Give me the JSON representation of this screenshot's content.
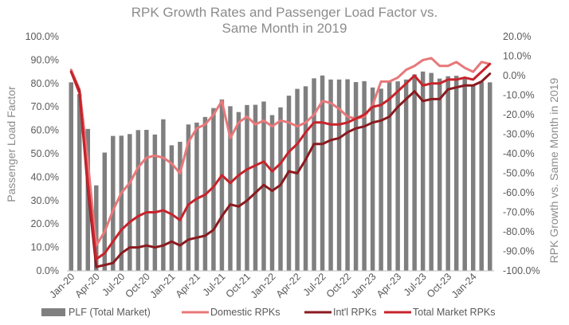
{
  "chart_data": {
    "type": "bar",
    "title": "RPK Growth Rates and Passenger Load Factor vs. Same Month in 2019",
    "title_lines": [
      "RPK Growth Rates and Passenger Load Factor vs.",
      "Same Month in 2019"
    ],
    "ylabel": "Passenger Load Factor",
    "y2label": "RPK Growth vs. Same Month in 2019",
    "ylim": [
      0,
      100
    ],
    "y2lim": [
      -100,
      20
    ],
    "y_ticks": [
      "0.0%",
      "10.0%",
      "20.0%",
      "30.0%",
      "40.0%",
      "50.0%",
      "60.0%",
      "70.0%",
      "80.0%",
      "90.0%",
      "100.0%"
    ],
    "y2_ticks": [
      "-100.0%",
      "-90.0%",
      "-80.0%",
      "-70.0%",
      "-60.0%",
      "-50.0%",
      "-40.0%",
      "-30.0%",
      "-20.0%",
      "-10.0%",
      "0.0%",
      "10.0%",
      "20.0%"
    ],
    "x_ticks": [
      "Jan-20",
      "Apr-20",
      "Jul-20",
      "Oct-20",
      "Jan-21",
      "Apr-21",
      "Jul-21",
      "Oct-21",
      "Jan-22",
      "Apr-22",
      "Jul-22",
      "Oct-22",
      "Jan-23",
      "Apr-23",
      "Jul-23",
      "Oct-23",
      "Jan-24"
    ],
    "grid": false,
    "legend_position": "bottom",
    "colors": {
      "bars": "#7f7f7f",
      "domestic": "#e8787a",
      "intl": "#8b1a1f",
      "total": "#c8232c",
      "axis_text": "#595959",
      "title": "#8c8c8c"
    },
    "categories": [
      "Jan-20",
      "Feb-20",
      "Mar-20",
      "Apr-20",
      "May-20",
      "Jun-20",
      "Jul-20",
      "Aug-20",
      "Sep-20",
      "Oct-20",
      "Nov-20",
      "Dec-20",
      "Jan-21",
      "Feb-21",
      "Mar-21",
      "Apr-21",
      "May-21",
      "Jun-21",
      "Jul-21",
      "Aug-21",
      "Sep-21",
      "Oct-21",
      "Nov-21",
      "Dec-21",
      "Jan-22",
      "Feb-22",
      "Mar-22",
      "Apr-22",
      "May-22",
      "Jun-22",
      "Jul-22",
      "Aug-22",
      "Sep-22",
      "Oct-22",
      "Nov-22",
      "Dec-22",
      "Jan-23",
      "Feb-23",
      "Mar-23",
      "Apr-23",
      "May-23",
      "Jun-23",
      "Jul-23",
      "Aug-23",
      "Sep-23",
      "Oct-23",
      "Nov-23",
      "Dec-23",
      "Jan-24",
      "Feb-24",
      "Mar-24"
    ],
    "series": [
      {
        "name": "PLF (Total Market)",
        "type": "bar",
        "axis": "left",
        "values": [
          80.5,
          75.5,
          60.6,
          36.5,
          50.5,
          57.6,
          57.7,
          58.4,
          60.1,
          60.2,
          58.2,
          64.7,
          53.6,
          55.1,
          62.5,
          63.3,
          65.7,
          69.5,
          73.2,
          70.3,
          67.8,
          70.8,
          70.9,
          72.3,
          66.5,
          69.8,
          74.8,
          77.7,
          78.8,
          82.2,
          83.4,
          81.7,
          81.7,
          81.8,
          80.6,
          81.0,
          78.3,
          77.8,
          80.7,
          80.9,
          81.7,
          83.9,
          85.1,
          84.5,
          82.1,
          83.1,
          83.3,
          82.8,
          79.3,
          80.7,
          80.5
        ]
      },
      {
        "name": "Domestic RPKs",
        "type": "line",
        "axis": "right",
        "values": [
          3,
          -7,
          -44,
          -87,
          -80,
          -69,
          -60,
          -55,
          -47,
          -42,
          -41,
          -42,
          -45,
          -50,
          -34,
          -27,
          -25,
          -20,
          -13,
          -32,
          -24,
          -21,
          -25,
          -23,
          -26,
          -23,
          -24,
          -26,
          -24,
          -20,
          -13,
          -14,
          -17,
          -21,
          -22,
          -21,
          -15,
          -3,
          -3,
          -1,
          3,
          5,
          8,
          9,
          5,
          5,
          7,
          4,
          2,
          7,
          6
        ]
      },
      {
        "name": "Int'l RPKs",
        "type": "line",
        "axis": "right",
        "values": [
          2,
          -8,
          -58,
          -98,
          -97,
          -96,
          -91,
          -88,
          -88,
          -87,
          -88,
          -87,
          -85,
          -87,
          -84,
          -83,
          -82,
          -79,
          -72,
          -66,
          -67,
          -64,
          -60,
          -56,
          -59,
          -56,
          -49,
          -50,
          -43,
          -35,
          -35,
          -33,
          -32,
          -29,
          -27,
          -26,
          -24,
          -23,
          -21,
          -16,
          -12,
          -8,
          -13,
          -12,
          -12,
          -7,
          -6,
          -5,
          -5,
          -3,
          1
        ]
      },
      {
        "name": "Total Market RPKs",
        "type": "line",
        "axis": "right",
        "values": [
          2,
          -9,
          -55,
          -94,
          -91,
          -85,
          -79,
          -75,
          -72,
          -70,
          -70,
          -69,
          -71,
          -74,
          -66,
          -63,
          -61,
          -57,
          -51,
          -55,
          -51,
          -48,
          -46,
          -44,
          -49,
          -45,
          -39,
          -35,
          -29,
          -24,
          -24,
          -25,
          -25,
          -24,
          -22,
          -20,
          -16,
          -15,
          -12,
          -8,
          -4,
          0,
          -5,
          -4,
          -4,
          -2,
          -2,
          -1,
          -2,
          2,
          6
        ]
      }
    ]
  }
}
